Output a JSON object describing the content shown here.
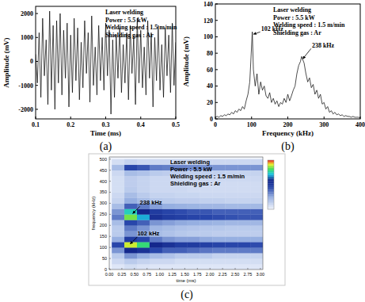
{
  "chart_data": [
    {
      "type": "line",
      "title": "(a)",
      "xlabel": "Time (ms)",
      "ylabel": "Amplitude (mV)",
      "text_box": [
        "Laser welding",
        "Power : 5.5 kW",
        "Welding speed : 1.5 m/min",
        "Shielding gas : Ar"
      ],
      "color": "#000000",
      "x": [
        0.1,
        0.105,
        0.11,
        0.115,
        0.12,
        0.125,
        0.13,
        0.135,
        0.14,
        0.145,
        0.15,
        0.155,
        0.16,
        0.165,
        0.17,
        0.175,
        0.18,
        0.185,
        0.19,
        0.195,
        0.2,
        0.205,
        0.21,
        0.215,
        0.22,
        0.225,
        0.23,
        0.235,
        0.24,
        0.245,
        0.25,
        0.255,
        0.26,
        0.265,
        0.27,
        0.275,
        0.28,
        0.285,
        0.29,
        0.295,
        0.3,
        0.305,
        0.31,
        0.315,
        0.32,
        0.325,
        0.33,
        0.335,
        0.34,
        0.345,
        0.35,
        0.355,
        0.36,
        0.365,
        0.37,
        0.375,
        0.38,
        0.385,
        0.39,
        0.395,
        0.4,
        0.405,
        0.41,
        0.415,
        0.42,
        0.425,
        0.43,
        0.435,
        0.44,
        0.445,
        0.45,
        0.455,
        0.46,
        0.465,
        0.47,
        0.475,
        0.48,
        0.485,
        0.49,
        0.495,
        0.5
      ],
      "values": [
        300,
        -900,
        1200,
        -1500,
        1800,
        -600,
        900,
        -1800,
        2100,
        -1200,
        1500,
        -2000,
        1700,
        -900,
        2000,
        -1400,
        1300,
        -700,
        1600,
        -1900,
        1100,
        -1300,
        1800,
        -800,
        1400,
        -1600,
        800,
        -1100,
        1700,
        -500,
        1200,
        -1700,
        1900,
        -1000,
        600,
        -1400,
        1500,
        -800,
        1000,
        -1200,
        1600,
        -600,
        1300,
        -2200,
        900,
        -1500,
        1100,
        -700,
        1400,
        -1300,
        700,
        -900,
        1200,
        -1600,
        1500,
        -500,
        1000,
        -1800,
        1800,
        -900,
        1300,
        -1100,
        600,
        -1400,
        1700,
        -700,
        1200,
        -1900,
        1000,
        -800,
        1500,
        -1200,
        700,
        -1500,
        1400,
        -600,
        1100,
        -1300,
        1600,
        -1000,
        800
      ],
      "xlim": [
        0.1,
        0.5
      ],
      "ylim": [
        -2400,
        2300
      ],
      "xticks": [
        0.1,
        0.2,
        0.3,
        0.4,
        0.5
      ],
      "yticks": [
        -2000,
        -1000,
        0,
        1000,
        2000
      ]
    },
    {
      "type": "line",
      "title": "(b)",
      "xlabel": "Frequency (kHz)",
      "ylabel": "Amplitude (mV)",
      "text_box": [
        "Laser welding",
        "Power : 5.5 kW",
        "Welding speed : 1.5 m/min",
        "Shielding gas : Ar"
      ],
      "color": "#000000",
      "x": [
        0,
        5,
        10,
        15,
        20,
        25,
        30,
        35,
        40,
        45,
        50,
        55,
        60,
        65,
        70,
        75,
        80,
        85,
        90,
        95,
        102,
        105,
        110,
        115,
        120,
        125,
        130,
        135,
        140,
        145,
        150,
        155,
        160,
        165,
        170,
        175,
        180,
        185,
        190,
        195,
        200,
        205,
        210,
        215,
        220,
        225,
        230,
        235,
        238,
        245,
        250,
        255,
        260,
        265,
        270,
        275,
        280,
        285,
        290,
        295,
        300,
        305,
        310,
        315,
        320,
        325,
        330,
        335,
        340,
        345,
        350,
        355,
        360,
        365,
        370,
        375,
        380,
        385,
        390,
        395,
        400
      ],
      "values": [
        2,
        3,
        2,
        4,
        3,
        5,
        4,
        6,
        5,
        8,
        6,
        10,
        8,
        12,
        10,
        15,
        12,
        22,
        30,
        45,
        106,
        60,
        40,
        55,
        30,
        45,
        35,
        40,
        28,
        25,
        32,
        20,
        25,
        18,
        22,
        15,
        20,
        18,
        25,
        20,
        30,
        22,
        28,
        35,
        40,
        55,
        65,
        70,
        76,
        68,
        55,
        45,
        50,
        38,
        42,
        30,
        35,
        25,
        30,
        18,
        20,
        12,
        15,
        8,
        10,
        6,
        8,
        5,
        6,
        4,
        5,
        3,
        4,
        3,
        3,
        2,
        3,
        2,
        2,
        2,
        1
      ],
      "xlim": [
        0,
        400
      ],
      "ylim": [
        0,
        140
      ],
      "xticks": [
        0,
        100,
        200,
        300,
        400
      ],
      "yticks": [
        0,
        20,
        40,
        60,
        80,
        100,
        120,
        140
      ],
      "annotations": [
        {
          "text": "102 kHz",
          "x": 102,
          "y": 106
        },
        {
          "text": "238 kHz",
          "x": 238,
          "y": 76
        }
      ]
    },
    {
      "type": "heatmap",
      "title": "(c)",
      "xlabel": "time (ms)",
      "ylabel": "frequency (kHz)",
      "text_box": [
        "Laser welding",
        "Power : 5.5 kW",
        "Welding speed : 1.5 m/min",
        "Shielding gas : Ar"
      ],
      "xlim": [
        0,
        3.05
      ],
      "ylim": [
        0,
        510
      ],
      "xticks": [
        {
          "value": 0,
          "label": "0.00"
        },
        {
          "value": 0.25,
          "label": "0.25"
        },
        {
          "value": 0.5,
          "label": "0.50"
        },
        {
          "value": 0.75,
          "label": "0.75"
        },
        {
          "value": 1,
          "label": "1.00"
        },
        {
          "value": 1.25,
          "label": "1.25"
        },
        {
          "value": 1.5,
          "label": "1.50"
        },
        {
          "value": 1.75,
          "label": "1.75"
        },
        {
          "value": 2,
          "label": "2.00"
        },
        {
          "value": 2.25,
          "label": "2.25"
        },
        {
          "value": 2.5,
          "label": "2.50"
        },
        {
          "value": 2.75,
          "label": "2.75"
        },
        {
          "value": 3,
          "label": "3.00"
        }
      ],
      "yticks": [
        0,
        50,
        100,
        150,
        200,
        250,
        300,
        350,
        400,
        450,
        500
      ],
      "x_bins": [
        0.05,
        0.3,
        0.55,
        0.8,
        1.05,
        1.3,
        1.55,
        1.8,
        2.05,
        2.3,
        2.55,
        2.8,
        3.05
      ],
      "y_bins": [
        0,
        25,
        50,
        75,
        100,
        125,
        150,
        175,
        200,
        225,
        250,
        275,
        300,
        325,
        350,
        375,
        400,
        425,
        450,
        475,
        500
      ],
      "color_range": [
        0,
        1
      ],
      "cells": [
        [
          0.05,
          0.08,
          0.06,
          0.05,
          0.05,
          0.05,
          0.05,
          0.05,
          0.05,
          0.05,
          0.05,
          0.05
        ],
        [
          0.1,
          0.15,
          0.12,
          0.1,
          0.1,
          0.08,
          0.08,
          0.08,
          0.08,
          0.08,
          0.08,
          0.08
        ],
        [
          0.15,
          0.3,
          0.25,
          0.2,
          0.18,
          0.15,
          0.15,
          0.15,
          0.12,
          0.12,
          0.12,
          0.12
        ],
        [
          0.3,
          0.6,
          0.55,
          0.45,
          0.4,
          0.4,
          0.38,
          0.36,
          0.35,
          0.35,
          0.35,
          0.35
        ],
        [
          0.45,
          0.9,
          0.8,
          0.6,
          0.55,
          0.5,
          0.5,
          0.48,
          0.46,
          0.45,
          0.45,
          0.44
        ],
        [
          0.25,
          0.5,
          0.45,
          0.35,
          0.3,
          0.28,
          0.28,
          0.26,
          0.25,
          0.25,
          0.25,
          0.25
        ],
        [
          0.15,
          0.3,
          0.25,
          0.2,
          0.18,
          0.16,
          0.15,
          0.15,
          0.14,
          0.14,
          0.14,
          0.14
        ],
        [
          0.15,
          0.35,
          0.3,
          0.22,
          0.2,
          0.18,
          0.17,
          0.16,
          0.16,
          0.15,
          0.15,
          0.15
        ],
        [
          0.2,
          0.45,
          0.4,
          0.3,
          0.28,
          0.26,
          0.25,
          0.24,
          0.23,
          0.22,
          0.22,
          0.22
        ],
        [
          0.35,
          0.85,
          0.7,
          0.55,
          0.5,
          0.48,
          0.46,
          0.45,
          0.44,
          0.43,
          0.42,
          0.42
        ],
        [
          0.3,
          0.75,
          0.6,
          0.5,
          0.46,
          0.44,
          0.42,
          0.42,
          0.4,
          0.4,
          0.4,
          0.4
        ],
        [
          0.2,
          0.4,
          0.35,
          0.28,
          0.25,
          0.24,
          0.23,
          0.22,
          0.22,
          0.21,
          0.21,
          0.21
        ],
        [
          0.12,
          0.25,
          0.2,
          0.16,
          0.15,
          0.14,
          0.14,
          0.13,
          0.13,
          0.12,
          0.12,
          0.12
        ],
        [
          0.1,
          0.2,
          0.15,
          0.12,
          0.12,
          0.11,
          0.11,
          0.1,
          0.1,
          0.1,
          0.1,
          0.1
        ],
        [
          0.08,
          0.15,
          0.12,
          0.1,
          0.1,
          0.1,
          0.09,
          0.09,
          0.09,
          0.09,
          0.09,
          0.09
        ],
        [
          0.08,
          0.14,
          0.12,
          0.1,
          0.1,
          0.1,
          0.09,
          0.09,
          0.09,
          0.09,
          0.09,
          0.09
        ],
        [
          0.08,
          0.14,
          0.12,
          0.1,
          0.1,
          0.1,
          0.1,
          0.1,
          0.1,
          0.1,
          0.1,
          0.1
        ],
        [
          0.1,
          0.2,
          0.18,
          0.15,
          0.14,
          0.14,
          0.13,
          0.13,
          0.13,
          0.12,
          0.12,
          0.12
        ],
        [
          0.2,
          0.45,
          0.42,
          0.35,
          0.34,
          0.33,
          0.32,
          0.31,
          0.3,
          0.3,
          0.3,
          0.3
        ],
        [
          0.08,
          0.12,
          0.1,
          0.1,
          0.1,
          0.1,
          0.1,
          0.1,
          0.1,
          0.1,
          0.1,
          0.1
        ]
      ],
      "annotations": [
        {
          "text": "238 kHz",
          "x": 0.45,
          "y": 250
        },
        {
          "text": "102 kHz",
          "x": 0.4,
          "y": 112
        }
      ]
    }
  ]
}
